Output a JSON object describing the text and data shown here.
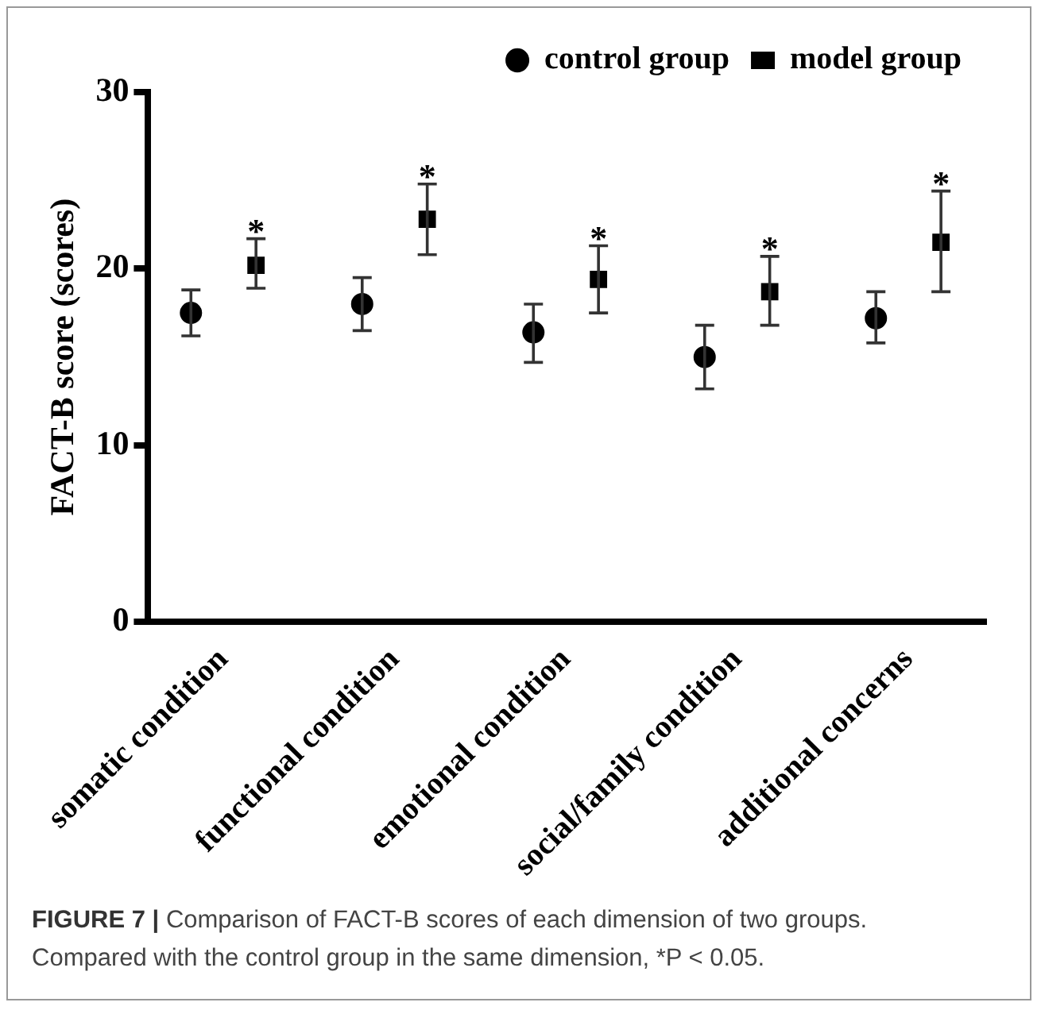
{
  "chart_data": {
    "type": "scatter",
    "ylabel": "FACT-B score (scores)",
    "categories": [
      "somatic condition",
      "functional condition",
      "emotional condition",
      "social/family condition",
      "additional concerns"
    ],
    "series": [
      {
        "name": "control group",
        "color": "#000000",
        "marker": "circle",
        "values": [
          17.5,
          18.0,
          16.4,
          15.0,
          17.2
        ],
        "errors": [
          [
            16.2,
            18.8
          ],
          [
            16.5,
            19.5
          ],
          [
            14.7,
            18.0
          ],
          [
            13.2,
            16.8
          ],
          [
            15.8,
            18.7
          ]
        ]
      },
      {
        "name": "model group",
        "color": "#000000",
        "marker": "square",
        "values": [
          20.2,
          22.8,
          19.4,
          18.7,
          21.5
        ],
        "value_labels": [
          "*",
          "*",
          "*",
          "*",
          "*"
        ],
        "errors": [
          [
            18.9,
            21.7
          ],
          [
            20.8,
            24.8
          ],
          [
            17.5,
            21.3
          ],
          [
            16.8,
            20.7
          ],
          [
            18.7,
            24.4
          ]
        ]
      }
    ],
    "ylim": [
      0,
      30
    ],
    "yticks": [
      0,
      10,
      20,
      30
    ],
    "grid": false,
    "legend": "top right",
    "annotations": [
      "FIGURE 7 | Comparison of FACT-B scores of each dimension of two groups.",
      "Compared with the control group in the same dimension, *P < 0.05."
    ]
  }
}
